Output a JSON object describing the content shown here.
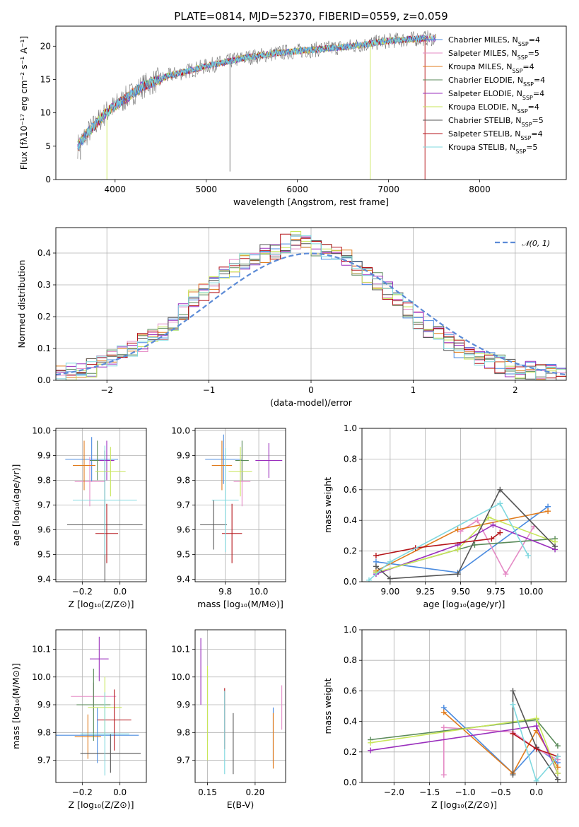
{
  "figure_title": "PLATE=0814, MJD=52370, FIBERID=0559, z=0.059",
  "colors": [
    "#4a8be0",
    "#e58bc6",
    "#e07b1c",
    "#5a8a5a",
    "#9a2fbd",
    "#c8e65a",
    "#555555",
    "#b5161b",
    "#7fd8df"
  ],
  "chart_data": [
    {
      "id": "spectrum",
      "type": "line",
      "xlabel": "wavelength [Angstrom, rest frame]",
      "ylabel": "Flux [fλ10⁻¹⁷ erg cm⁻² s⁻¹ A⁻¹]",
      "xlim": [
        3350,
        8950
      ],
      "ylim": [
        0,
        23
      ],
      "xticks": [
        4000,
        5000,
        6000,
        7000,
        8000
      ],
      "yticks": [
        0,
        5,
        10,
        15,
        20
      ],
      "grid": false,
      "legend_position": "right",
      "legend": [
        {
          "name": "Chabrier MILES",
          "nssp": "4"
        },
        {
          "name": "Salpeter MILES",
          "nssp": "5"
        },
        {
          "name": "Kroupa MILES",
          "nssp": "4"
        },
        {
          "name": "Chabrier ELODIE",
          "nssp": "4"
        },
        {
          "name": "Salpeter ELODIE",
          "nssp": "4"
        },
        {
          "name": "Kroupa ELODIE",
          "nssp": "4"
        },
        {
          "name": "Chabrier STELIB",
          "nssp": "5"
        },
        {
          "name": "Salpeter STELIB",
          "nssp": "4"
        },
        {
          "name": "Kroupa STELIB",
          "nssp": "5"
        }
      ],
      "data_anchor": {
        "x": [
          3600,
          3700,
          3900,
          4100,
          4300,
          4600,
          5000,
          5400,
          5800,
          6200,
          6600,
          7000,
          7400
        ],
        "y": [
          5.2,
          7.0,
          10.0,
          12.0,
          14.0,
          15.6,
          17.0,
          18.2,
          19.0,
          19.5,
          20.0,
          20.8,
          21.2
        ]
      }
    },
    {
      "id": "residuals",
      "type": "histogram",
      "xlabel": "(data-model)/error",
      "ylabel": "Normed distribution",
      "xlim": [
        -2.5,
        2.5
      ],
      "ylim": [
        0,
        0.48
      ],
      "xticks": [
        -2,
        -1,
        0,
        1,
        2
      ],
      "yticks": [
        0.0,
        0.1,
        0.2,
        0.3,
        0.4
      ],
      "grid": true,
      "legend_position": "top-right",
      "gaussian_label": "𝒩(0, 1)",
      "bin_width": 0.1,
      "bins_start": -2.5,
      "values": [
        0.02,
        0.03,
        0.03,
        0.04,
        0.05,
        0.07,
        0.08,
        0.1,
        0.12,
        0.14,
        0.15,
        0.18,
        0.22,
        0.26,
        0.28,
        0.3,
        0.33,
        0.35,
        0.37,
        0.38,
        0.4,
        0.41,
        0.43,
        0.44,
        0.43,
        0.42,
        0.41,
        0.4,
        0.38,
        0.36,
        0.33,
        0.31,
        0.28,
        0.25,
        0.22,
        0.19,
        0.16,
        0.14,
        0.12,
        0.1,
        0.09,
        0.07,
        0.06,
        0.05,
        0.04,
        0.03,
        0.03,
        0.02,
        0.02,
        0.02
      ]
    },
    {
      "id": "age-vs-z",
      "type": "errorbar",
      "xlabel": "Z [log₁₀(Z/Z⊙)]",
      "ylabel": "age  [log₁₀(age/yr)]",
      "xlim": [
        -0.34,
        0.14
      ],
      "ylim": [
        9.39,
        10.01
      ],
      "xticks": [
        -0.2,
        0.0
      ],
      "xticklabels": [
        "−0.2",
        "0.0"
      ],
      "yticks": [
        9.4,
        9.5,
        9.6,
        9.7,
        9.8,
        9.9,
        10.0
      ],
      "grid": true,
      "points": [
        {
          "x": -0.15,
          "y": 9.885,
          "xerr": 0.14,
          "yerr": 0.09
        },
        {
          "x": -0.16,
          "y": 9.795,
          "xerr": 0.08,
          "yerr": 0.1
        },
        {
          "x": -0.19,
          "y": 9.86,
          "xerr": 0.06,
          "yerr": 0.1
        },
        {
          "x": -0.12,
          "y": 9.88,
          "xerr": 0.04,
          "yerr": 0.08
        },
        {
          "x": -0.07,
          "y": 9.88,
          "xerr": 0.04,
          "yerr": 0.08
        },
        {
          "x": -0.05,
          "y": 9.835,
          "xerr": 0.08,
          "yerr": 0.1
        },
        {
          "x": -0.08,
          "y": 9.62,
          "xerr": 0.2,
          "yerr": 0.3
        },
        {
          "x": -0.07,
          "y": 9.585,
          "xerr": 0.06,
          "yerr": 0.12
        },
        {
          "x": -0.08,
          "y": 9.72,
          "xerr": 0.17,
          "yerr": 0.22
        }
      ]
    },
    {
      "id": "age-vs-mass",
      "type": "errorbar",
      "xlabel": "mass [log₁₀(M/M⊙)]",
      "ylabel": "",
      "xlim": [
        9.62,
        10.16
      ],
      "ylim": [
        9.39,
        10.01
      ],
      "xticks": [
        9.8,
        10.0
      ],
      "xticklabels": [
        "9.8",
        "10.0"
      ],
      "yticks": [
        9.4,
        9.5,
        9.6,
        9.7,
        9.8,
        9.9,
        10.0
      ],
      "grid": true,
      "points": [
        {
          "x": 9.79,
          "y": 9.885,
          "xerr": 0.11,
          "yerr": 0.1
        },
        {
          "x": 9.9,
          "y": 9.795,
          "xerr": 0.05,
          "yerr": 0.1
        },
        {
          "x": 9.78,
          "y": 9.86,
          "xerr": 0.06,
          "yerr": 0.1
        },
        {
          "x": 9.9,
          "y": 9.88,
          "xerr": 0.04,
          "yerr": 0.08
        },
        {
          "x": 10.06,
          "y": 9.88,
          "xerr": 0.08,
          "yerr": 0.07
        },
        {
          "x": 9.89,
          "y": 9.835,
          "xerr": 0.07,
          "yerr": 0.1
        },
        {
          "x": 9.73,
          "y": 9.62,
          "xerr": 0.08,
          "yerr": 0.1
        },
        {
          "x": 9.84,
          "y": 9.585,
          "xerr": 0.06,
          "yerr": 0.12
        },
        {
          "x": 9.8,
          "y": 9.72,
          "xerr": 0.08,
          "yerr": 0.21
        }
      ]
    },
    {
      "id": "weight-vs-age",
      "type": "line",
      "xlabel": "age  [log₁₀(age/yr)]",
      "ylabel": "mass weight",
      "xlim": [
        8.8,
        10.25
      ],
      "ylim": [
        0.0,
        1.0
      ],
      "xticks": [
        9.0,
        9.25,
        9.5,
        9.75,
        10.0
      ],
      "xticklabels": [
        "9.00",
        "9.25",
        "9.50",
        "9.75",
        "10.00"
      ],
      "yticks": [
        0.0,
        0.2,
        0.4,
        0.6,
        0.8,
        1.0
      ],
      "grid": true,
      "series": [
        {
          "x": [
            8.9,
            9.48,
            10.12
          ],
          "y": [
            0.13,
            0.06,
            0.49
          ]
        },
        {
          "x": [
            9.5,
            9.62,
            9.82,
            10.02
          ],
          "y": [
            0.33,
            0.4,
            0.05,
            0.36
          ]
        },
        {
          "x": [
            8.9,
            9.48,
            10.12
          ],
          "y": [
            0.07,
            0.34,
            0.46
          ]
        },
        {
          "x": [
            8.9,
            9.6,
            10.17
          ],
          "y": [
            0.06,
            0.24,
            0.28
          ]
        },
        {
          "x": [
            8.9,
            9.48,
            9.73,
            10.17
          ],
          "y": [
            0.05,
            0.24,
            0.37,
            0.21
          ]
        },
        {
          "x": [
            8.9,
            9.48,
            9.7,
            10.17
          ],
          "y": [
            0.06,
            0.21,
            0.42,
            0.26
          ]
        },
        {
          "x": [
            8.9,
            9.0,
            9.48,
            9.78,
            10.17
          ],
          "y": [
            0.1,
            0.02,
            0.05,
            0.6,
            0.23
          ]
        },
        {
          "x": [
            8.9,
            9.18,
            9.72,
            9.78
          ],
          "y": [
            0.17,
            0.22,
            0.28,
            0.32
          ]
        },
        {
          "x": [
            8.85,
            9.0,
            9.78,
            9.98
          ],
          "y": [
            0.01,
            0.13,
            0.51,
            0.17
          ]
        }
      ]
    },
    {
      "id": "mass-vs-z",
      "type": "errorbar",
      "xlabel": "Z [log₁₀(Z/Z⊙)]",
      "ylabel": "mass [log₁₀(M/M⊙)]",
      "xlim": [
        -0.34,
        0.14
      ],
      "ylim": [
        9.62,
        10.17
      ],
      "xticks": [
        -0.2,
        0.0
      ],
      "xticklabels": [
        "−0.2",
        "0.0"
      ],
      "yticks": [
        9.7,
        9.8,
        9.9,
        10.0,
        10.1
      ],
      "grid": true,
      "points": [
        {
          "x": -0.12,
          "y": 9.79,
          "xerr": 0.22,
          "yerr": 0.1
        },
        {
          "x": -0.14,
          "y": 9.93,
          "xerr": 0.12,
          "yerr": 0.05
        },
        {
          "x": -0.17,
          "y": 9.785,
          "xerr": 0.07,
          "yerr": 0.08
        },
        {
          "x": -0.14,
          "y": 9.9,
          "xerr": 0.09,
          "yerr": 0.13
        },
        {
          "x": -0.11,
          "y": 10.065,
          "xerr": 0.05,
          "yerr": 0.08
        },
        {
          "x": -0.08,
          "y": 9.89,
          "xerr": 0.09,
          "yerr": 0.11
        },
        {
          "x": -0.05,
          "y": 9.725,
          "xerr": 0.16,
          "yerr": 0.07
        },
        {
          "x": -0.03,
          "y": 9.845,
          "xerr": 0.09,
          "yerr": 0.11
        },
        {
          "x": -0.08,
          "y": 9.795,
          "xerr": 0.13,
          "yerr": 0.15
        }
      ]
    },
    {
      "id": "mass-vs-ebv",
      "type": "errorbar",
      "xlabel": "E(B-V)",
      "ylabel": "",
      "xlim": [
        0.137,
        0.232
      ],
      "ylim": [
        9.62,
        10.17
      ],
      "xticks": [
        0.15,
        0.2
      ],
      "xticklabels": [
        "0.15",
        "0.20"
      ],
      "yticks": [
        9.7,
        9.8,
        9.9,
        10.0,
        10.1
      ],
      "grid": true,
      "points": [
        {
          "x": 0.219,
          "y": 9.79,
          "xerr": 0.0,
          "yerr": 0.1
        },
        {
          "x": 0.228,
          "y": 9.89,
          "xerr": 0.0,
          "yerr": 0.08
        },
        {
          "x": 0.219,
          "y": 9.77,
          "xerr": 0.0,
          "yerr": 0.1
        },
        {
          "x": 0.15,
          "y": 9.9,
          "xerr": 0.0,
          "yerr": 0.13
        },
        {
          "x": 0.143,
          "y": 10.02,
          "xerr": 0.0,
          "yerr": 0.12
        },
        {
          "x": 0.15,
          "y": 9.87,
          "xerr": 0.0,
          "yerr": 0.17
        },
        {
          "x": 0.177,
          "y": 9.76,
          "xerr": 0.0,
          "yerr": 0.11
        },
        {
          "x": 0.168,
          "y": 9.85,
          "xerr": 0.0,
          "yerr": 0.11
        },
        {
          "x": 0.168,
          "y": 9.8,
          "xerr": 0.0,
          "yerr": 0.15
        }
      ]
    },
    {
      "id": "weight-vs-z",
      "type": "line",
      "xlabel": "Z [log₁₀(Z/Z⊙)]",
      "ylabel": "mass weight",
      "xlim": [
        -2.45,
        0.42
      ],
      "ylim": [
        0.0,
        1.0
      ],
      "xticks": [
        -2.0,
        -1.5,
        -1.0,
        -0.5,
        0.0
      ],
      "xticklabels": [
        "−2.0",
        "−1.5",
        "−1.0",
        "−0.5",
        "0.0"
      ],
      "yticks": [
        0.0,
        0.2,
        0.4,
        0.6,
        0.8,
        1.0
      ],
      "grid": true,
      "series": [
        {
          "x": [
            -1.3,
            -0.33,
            0.0,
            0.3
          ],
          "y": [
            0.49,
            0.06,
            0.23,
            0.13
          ]
        },
        {
          "x": [
            -1.3,
            -1.3,
            -0.33,
            0.0,
            0.3
          ],
          "y": [
            0.05,
            0.36,
            0.33,
            0.22,
            0.15
          ]
        },
        {
          "x": [
            -1.3,
            -0.33,
            0.0,
            0.3
          ],
          "y": [
            0.46,
            0.06,
            0.34,
            0.1
          ]
        },
        {
          "x": [
            -2.33,
            0.0,
            0.3
          ],
          "y": [
            0.28,
            0.41,
            0.24
          ]
        },
        {
          "x": [
            -2.33,
            0.0,
            0.3
          ],
          "y": [
            0.21,
            0.37,
            0.06
          ]
        },
        {
          "x": [
            -2.33,
            0.0,
            0.3
          ],
          "y": [
            0.26,
            0.42,
            0.06
          ]
        },
        {
          "x": [
            -0.33,
            -0.33,
            0.0,
            0.3
          ],
          "y": [
            0.05,
            0.6,
            0.23,
            0.02
          ]
        },
        {
          "x": [
            -0.33,
            0.0,
            0.3
          ],
          "y": [
            0.32,
            0.22,
            0.17
          ]
        },
        {
          "x": [
            -0.33,
            0.0,
            0.3
          ],
          "y": [
            0.51,
            0.01,
            0.17
          ]
        }
      ]
    }
  ]
}
